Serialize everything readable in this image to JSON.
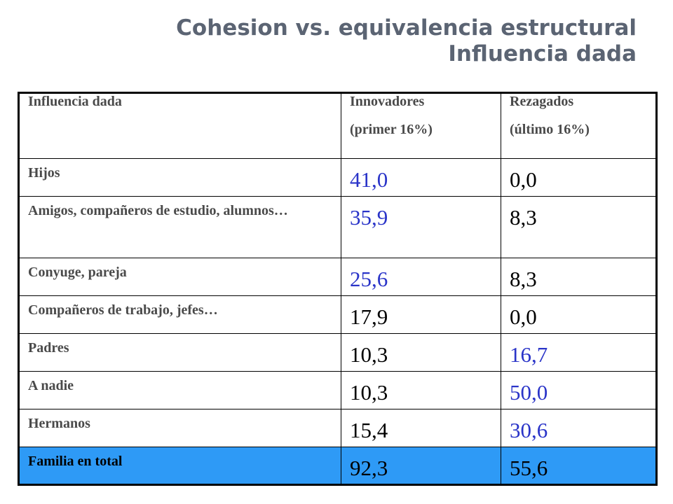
{
  "title": {
    "line1": "Cohesion vs. equivalencia estructural",
    "line2": "Influencia dada"
  },
  "table": {
    "headers": [
      {
        "line1": "Influencia dada",
        "line2": ""
      },
      {
        "line1": "Innovadores",
        "line2": "(primer 16%)"
      },
      {
        "line1": "Rezagados",
        "line2": "(último 16%)"
      }
    ],
    "rows": [
      {
        "label": "Hijos",
        "innovadores": "41,0",
        "rezagados": "0,0"
      },
      {
        "label": "Amigos, compañeros de estudio, alumnos…",
        "innovadores": "35,9",
        "rezagados": "8,3"
      },
      {
        "label": "Conyuge, pareja",
        "innovadores": "25,6",
        "rezagados": "8,3"
      },
      {
        "label": "Compañeros de trabajo, jefes…",
        "innovadores": "17,9",
        "rezagados": "0,0"
      },
      {
        "label": "Padres",
        "innovadores": "10,3",
        "rezagados": "16,7"
      },
      {
        "label": "A nadie",
        "innovadores": "10,3",
        "rezagados": "50,0"
      },
      {
        "label": "Hermanos",
        "innovadores": "15,4",
        "rezagados": "30,6"
      },
      {
        "label": "Familia en total",
        "innovadores": "92,3",
        "rezagados": "55,6"
      }
    ]
  },
  "colors": {
    "title": "#5b6473",
    "highlight_text": "#2a34c8",
    "total_row_bg": "#2e9af6"
  }
}
